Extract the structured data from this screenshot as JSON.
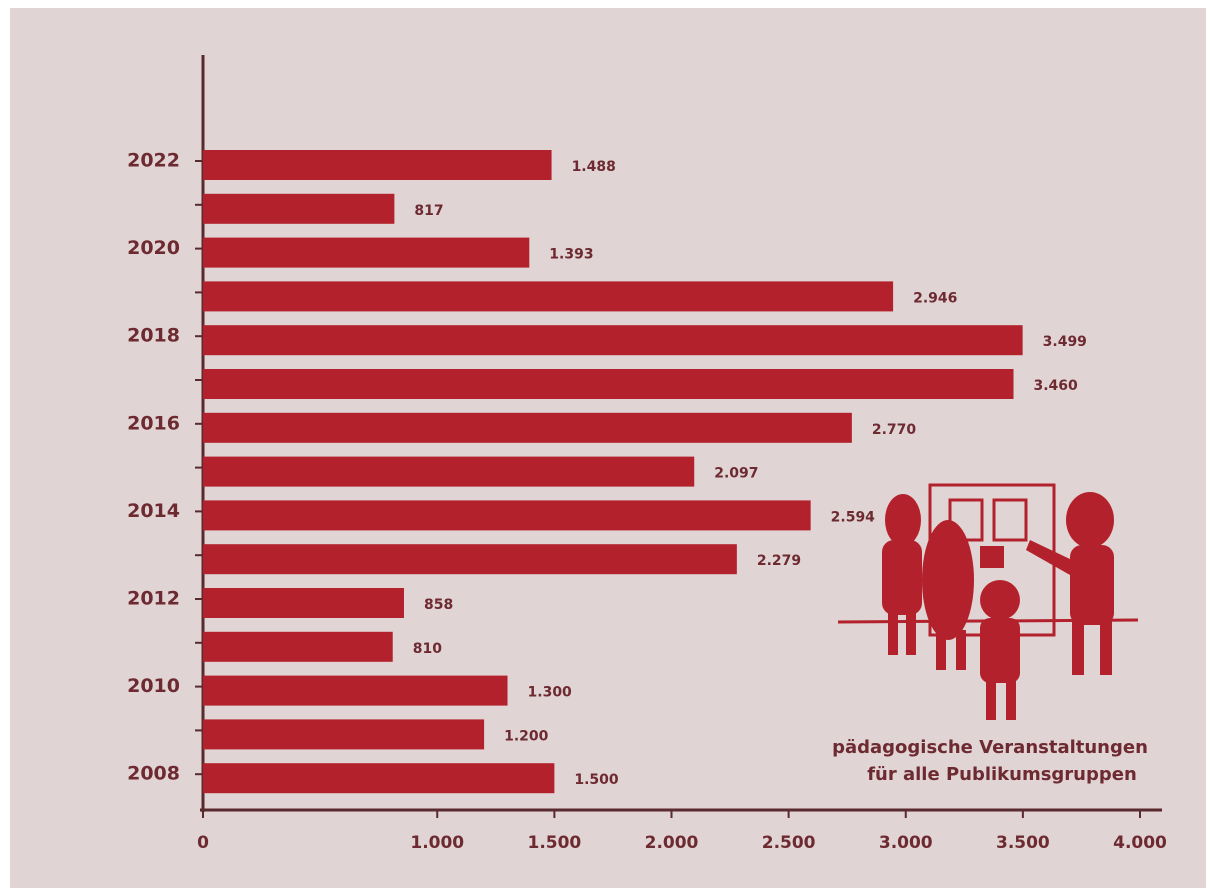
{
  "chart_data": {
    "type": "hbar",
    "categories": [
      "2022",
      null,
      "2020",
      null,
      "2018",
      null,
      "2016",
      null,
      "2014",
      null,
      "2012",
      null,
      "2010",
      null,
      "2008"
    ],
    "values": [
      1488,
      817,
      1393,
      2946,
      3499,
      3460,
      2770,
      2097,
      2594,
      2279,
      858,
      810,
      1300,
      1200,
      1500
    ],
    "value_labels": [
      "1.488",
      "817",
      "1.393",
      "2.946",
      "3.499",
      "3.460",
      "2.770",
      "2.097",
      "2.594",
      "2.279",
      "858",
      "810",
      "1.300",
      "1.200",
      "1.500"
    ],
    "color": "#b3222c",
    "xlim": [
      0,
      4000
    ],
    "xticks": [
      0,
      {
        "value": 1000,
        "label": "1.000"
      },
      {
        "value": 1500,
        "label": "1.500"
      },
      {
        "value": 2000,
        "label": "2.000"
      },
      {
        "value": 2500,
        "label": "2.500"
      },
      {
        "value": 3000,
        "label": "3.000"
      },
      {
        "value": 3500,
        "label": "3.500"
      },
      {
        "value": 4000,
        "label": "4.000"
      }
    ],
    "annotation": [
      "pädagogische Veranstaltungen",
      "für alle Publikumsgruppen"
    ]
  }
}
